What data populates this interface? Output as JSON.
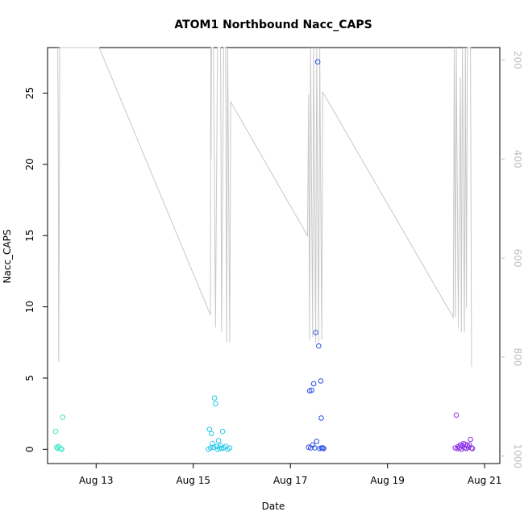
{
  "chart_data": {
    "type": "scatter",
    "title": "ATOM1 Northbound Nacc_CAPS",
    "xlabel": "Date",
    "ylabel": "Nacc_CAPS",
    "xlim": [
      "2023-08-12 00:00",
      "2023-08-21 07:30"
    ],
    "ylim": [
      -1.0,
      28.2
    ],
    "x_ticks": [
      {
        "date": "2023-08-13",
        "label": "Aug 13"
      },
      {
        "date": "2023-08-15",
        "label": "Aug 15"
      },
      {
        "date": "2023-08-17",
        "label": "Aug 17"
      },
      {
        "date": "2023-08-19",
        "label": "Aug 19"
      },
      {
        "date": "2023-08-21",
        "label": "Aug 21"
      }
    ],
    "y_ticks": [
      0,
      5,
      10,
      15,
      20,
      25
    ],
    "right_axis": {
      "ylim": [
        1015,
        175
      ],
      "reversed": true,
      "ticks": [
        200,
        400,
        600,
        800,
        1000
      ],
      "color": "#bebebe",
      "series": {
        "name": "",
        "color": "#c8c8c8",
        "points": [
          [
            "2023-08-12 05:00",
            175
          ],
          [
            "2023-08-12 05:15",
            335
          ],
          [
            "2023-08-12 05:30",
            810
          ],
          [
            "2023-08-12 06:00",
            175
          ],
          [
            "2023-08-12 07:00",
            175
          ],
          [
            "2023-08-13 01:30",
            175
          ],
          [
            "2023-08-15 08:30",
            715
          ],
          [
            "2023-08-15 08:40",
            175
          ],
          [
            "2023-08-15 08:50",
            400
          ],
          [
            "2023-08-15 09:00",
            175
          ],
          [
            "2023-08-15 10:00",
            175
          ],
          [
            "2023-08-15 11:00",
            740
          ],
          [
            "2023-08-15 12:00",
            175
          ],
          [
            "2023-08-15 13:30",
            175
          ],
          [
            "2023-08-15 14:00",
            750
          ],
          [
            "2023-08-15 15:00",
            175
          ],
          [
            "2023-08-15 16:00",
            175
          ],
          [
            "2023-08-15 16:30",
            770
          ],
          [
            "2023-08-15 17:00",
            175
          ],
          [
            "2023-08-15 18:00",
            770
          ],
          [
            "2023-08-15 18:30",
            285
          ],
          [
            "2023-08-17 08:30",
            555
          ],
          [
            "2023-08-17 09:00",
            270
          ],
          [
            "2023-08-17 09:30",
            765
          ],
          [
            "2023-08-17 10:00",
            175
          ],
          [
            "2023-08-17 11:00",
            760
          ],
          [
            "2023-08-17 11:30",
            175
          ],
          [
            "2023-08-17 12:30",
            770
          ],
          [
            "2023-08-17 13:00",
            175
          ],
          [
            "2023-08-17 14:00",
            770
          ],
          [
            "2023-08-17 14:30",
            175
          ],
          [
            "2023-08-17 15:30",
            765
          ],
          [
            "2023-08-17 16:00",
            265
          ],
          [
            "2023-08-20 08:30",
            720
          ],
          [
            "2023-08-20 09:00",
            175
          ],
          [
            "2023-08-20 09:30",
            720
          ],
          [
            "2023-08-20 10:00",
            175
          ],
          [
            "2023-08-20 11:00",
            740
          ],
          [
            "2023-08-20 12:00",
            235
          ],
          [
            "2023-08-20 12:30",
            750
          ],
          [
            "2023-08-20 13:00",
            175
          ],
          [
            "2023-08-20 14:00",
            750
          ],
          [
            "2023-08-20 14:30",
            175
          ],
          [
            "2023-08-20 15:00",
            700
          ],
          [
            "2023-08-20 15:30",
            175
          ],
          [
            "2023-08-20 17:00",
            175
          ],
          [
            "2023-08-20 17:30",
            820
          ]
        ]
      }
    },
    "series": [
      {
        "name": "",
        "color": "#3de6c8",
        "points": [
          [
            "2023-08-12 04:00",
            1.25
          ],
          [
            "2023-08-12 04:30",
            0.15
          ],
          [
            "2023-08-12 05:00",
            0.05
          ],
          [
            "2023-08-12 05:30",
            0.2
          ],
          [
            "2023-08-12 06:30",
            0.05
          ],
          [
            "2023-08-12 07:00",
            0.0
          ],
          [
            "2023-08-12 07:30",
            2.25
          ]
        ]
      },
      {
        "name": "",
        "color": "#28c8ea",
        "points": [
          [
            "2023-08-15 07:30",
            0.0
          ],
          [
            "2023-08-15 08:00",
            1.4
          ],
          [
            "2023-08-15 08:30",
            0.1
          ],
          [
            "2023-08-15 09:00",
            1.1
          ],
          [
            "2023-08-15 09:30",
            0.4
          ],
          [
            "2023-08-15 10:00",
            0.15
          ],
          [
            "2023-08-15 10:30",
            3.6
          ],
          [
            "2023-08-15 11:00",
            3.2
          ],
          [
            "2023-08-15 11:30",
            0.2
          ],
          [
            "2023-08-15 12:00",
            0.0
          ],
          [
            "2023-08-15 12:30",
            0.6
          ],
          [
            "2023-08-15 13:00",
            0.1
          ],
          [
            "2023-08-15 13:30",
            0.25
          ],
          [
            "2023-08-15 14:00",
            0.05
          ],
          [
            "2023-08-15 14:30",
            1.25
          ],
          [
            "2023-08-15 15:00",
            0.1
          ],
          [
            "2023-08-15 16:00",
            0.2
          ],
          [
            "2023-08-15 17:00",
            0.0
          ],
          [
            "2023-08-15 18:00",
            0.1
          ]
        ]
      },
      {
        "name": "",
        "color": "#2a50e6",
        "points": [
          [
            "2023-08-17 09:00",
            0.15
          ],
          [
            "2023-08-17 09:30",
            4.1
          ],
          [
            "2023-08-17 10:00",
            0.1
          ],
          [
            "2023-08-17 10:30",
            4.15
          ],
          [
            "2023-08-17 11:00",
            0.3
          ],
          [
            "2023-08-17 11:30",
            4.6
          ],
          [
            "2023-08-17 12:00",
            0.1
          ],
          [
            "2023-08-17 12:30",
            8.2
          ],
          [
            "2023-08-17 13:00",
            0.55
          ],
          [
            "2023-08-17 13:30",
            27.2
          ],
          [
            "2023-08-17 14:00",
            7.25
          ],
          [
            "2023-08-17 14:30",
            0.05
          ],
          [
            "2023-08-17 15:00",
            4.8
          ],
          [
            "2023-08-17 15:15",
            2.2
          ],
          [
            "2023-08-17 15:30",
            0.1
          ],
          [
            "2023-08-17 16:00",
            0.1
          ],
          [
            "2023-08-17 16:30",
            0.05
          ]
        ]
      },
      {
        "name": "",
        "color": "#8a2ee6",
        "points": [
          [
            "2023-08-20 09:30",
            0.1
          ],
          [
            "2023-08-20 10:00",
            2.4
          ],
          [
            "2023-08-20 10:30",
            0.05
          ],
          [
            "2023-08-20 11:00",
            0.2
          ],
          [
            "2023-08-20 11:30",
            0.1
          ],
          [
            "2023-08-20 12:00",
            0.3
          ],
          [
            "2023-08-20 12:30",
            0.0
          ],
          [
            "2023-08-20 13:00",
            0.25
          ],
          [
            "2023-08-20 13:30",
            0.4
          ],
          [
            "2023-08-20 14:00",
            0.1
          ],
          [
            "2023-08-20 14:30",
            0.35
          ],
          [
            "2023-08-20 15:00",
            0.05
          ],
          [
            "2023-08-20 15:30",
            0.25
          ],
          [
            "2023-08-20 16:00",
            0.15
          ],
          [
            "2023-08-20 16:30",
            0.3
          ],
          [
            "2023-08-20 17:00",
            0.7
          ],
          [
            "2023-08-20 17:30",
            0.1
          ],
          [
            "2023-08-20 18:00",
            0.05
          ]
        ]
      }
    ]
  }
}
